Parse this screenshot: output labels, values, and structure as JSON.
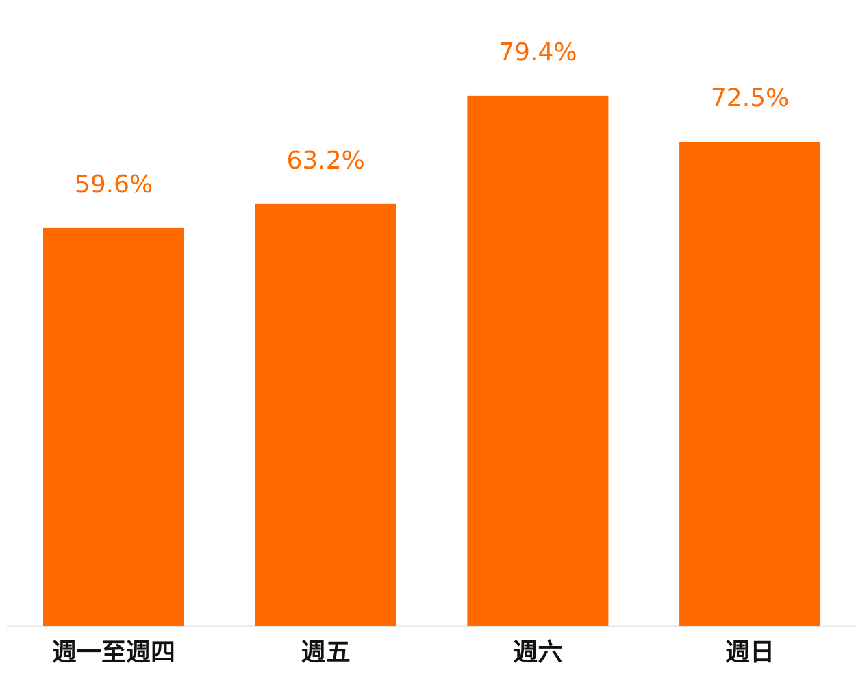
{
  "chart_data": {
    "type": "bar",
    "categories": [
      "週一至週四",
      "週五",
      "週六",
      "週日"
    ],
    "values": [
      59.6,
      63.2,
      79.4,
      72.5
    ],
    "value_labels": [
      "59.6%",
      "63.2%",
      "79.4%",
      "72.5%"
    ],
    "color": "#ff6a00"
  }
}
